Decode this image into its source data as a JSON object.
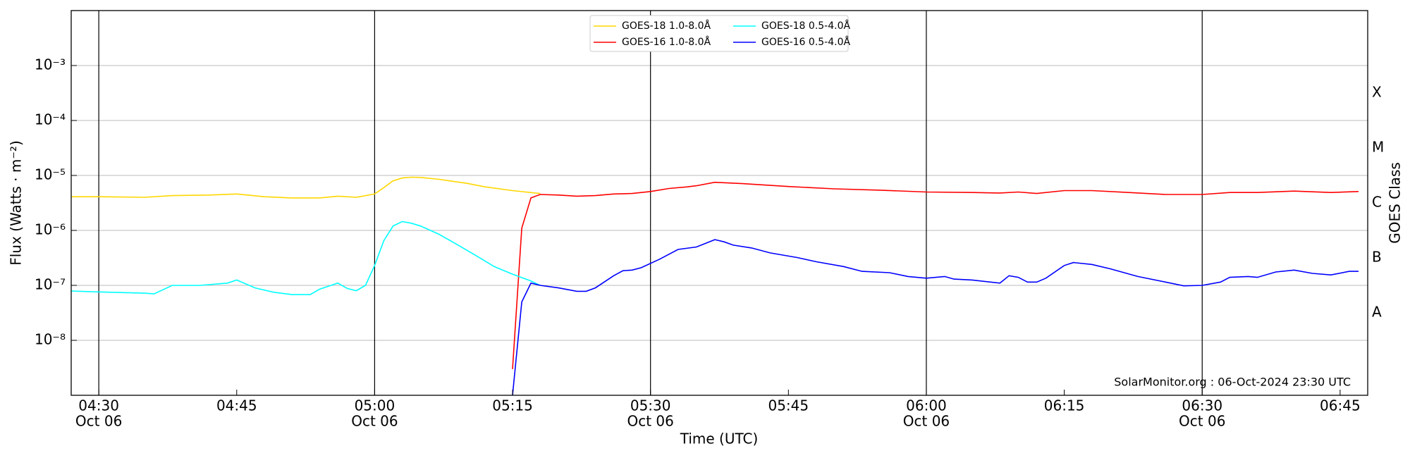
{
  "chart_data": {
    "type": "line",
    "xlabel": "Time (UTC)",
    "ylabel": "Flux (Watts · m⁻²)",
    "y2label": "GOES Class",
    "annotation": "SolarMonitor.org : 06-Oct-2024 23:30 UTC",
    "yscale": "log",
    "grid": true,
    "legend": "top",
    "xlim": [
      "04:27",
      "06:48"
    ],
    "ylim": [
      1e-09,
      0.01
    ],
    "xticks": [
      {
        "value": "04:30",
        "label": "04:30",
        "date": "Oct 06"
      },
      {
        "value": "04:45",
        "label": "04:45"
      },
      {
        "value": "05:00",
        "label": "05:00",
        "date": "Oct 06"
      },
      {
        "value": "05:15",
        "label": "05:15"
      },
      {
        "value": "05:30",
        "label": "05:30",
        "date": "Oct 06"
      },
      {
        "value": "05:45",
        "label": "05:45"
      },
      {
        "value": "06:00",
        "label": "06:00",
        "date": "Oct 06"
      },
      {
        "value": "06:15",
        "label": "06:15"
      },
      {
        "value": "06:30",
        "label": "06:30",
        "date": "Oct 06"
      },
      {
        "value": "06:45",
        "label": "06:45"
      }
    ],
    "yticks": [
      {
        "value": 1e-08,
        "label": "10⁻⁸"
      },
      {
        "value": 1e-07,
        "label": "10⁻⁷"
      },
      {
        "value": 1e-06,
        "label": "10⁻⁶"
      },
      {
        "value": 1e-05,
        "label": "10⁻⁵"
      },
      {
        "value": 0.0001,
        "label": "10⁻⁴"
      },
      {
        "value": 0.001,
        "label": "10⁻³"
      }
    ],
    "y2ticks": [
      {
        "value": 3.16e-08,
        "label": "A"
      },
      {
        "value": 3.16e-07,
        "label": "B"
      },
      {
        "value": 3.16e-06,
        "label": "C"
      },
      {
        "value": 3.16e-05,
        "label": "M"
      },
      {
        "value": 0.000316,
        "label": "X"
      }
    ],
    "series": [
      {
        "name": "GOES-18 1.0-8.0Å",
        "color": "#ffd700",
        "x": [
          "04:27",
          "04:30",
          "04:35",
          "04:38",
          "04:42",
          "04:45",
          "04:48",
          "04:51",
          "04:54",
          "04:56",
          "04:58",
          "05:00",
          "05:01",
          "05:02",
          "05:03",
          "05:04",
          "05:05",
          "05:07",
          "05:10",
          "05:12",
          "05:15",
          "05:18"
        ],
        "values": [
          4.1e-06,
          4.1e-06,
          4e-06,
          4.3e-06,
          4.4e-06,
          4.6e-06,
          4.1e-06,
          3.9e-06,
          3.9e-06,
          4.2e-06,
          4e-06,
          4.6e-06,
          6e-06,
          8e-06,
          9e-06,
          9.3e-06,
          9.2e-06,
          8.5e-06,
          7.2e-06,
          6.2e-06,
          5.3e-06,
          4.7e-06
        ]
      },
      {
        "name": "GOES-16 1.0-8.0Å",
        "color": "#ff0000",
        "x": [
          "05:15",
          "05:16",
          "05:17",
          "05:18",
          "05:20",
          "05:22",
          "05:24",
          "05:26",
          "05:28",
          "05:30",
          "05:32",
          "05:34",
          "05:35",
          "05:37",
          "05:40",
          "05:45",
          "05:50",
          "05:55",
          "06:00",
          "06:05",
          "06:08",
          "06:10",
          "06:12",
          "06:15",
          "06:18",
          "06:22",
          "06:26",
          "06:30",
          "06:33",
          "06:36",
          "06:40",
          "06:44",
          "06:47"
        ],
        "values": [
          3e-09,
          1.1e-06,
          3.9e-06,
          4.5e-06,
          4.4e-06,
          4.2e-06,
          4.3e-06,
          4.6e-06,
          4.7e-06,
          5.1e-06,
          5.8e-06,
          6.2e-06,
          6.5e-06,
          7.5e-06,
          7.1e-06,
          6.3e-06,
          5.7e-06,
          5.4e-06,
          5e-06,
          4.9e-06,
          4.8e-06,
          5e-06,
          4.7e-06,
          5.3e-06,
          5.3e-06,
          4.9e-06,
          4.5e-06,
          4.5e-06,
          4.9e-06,
          4.9e-06,
          5.2e-06,
          4.9e-06,
          5.1e-06
        ]
      },
      {
        "name": "GOES-18 0.5-4.0Å",
        "color": "#00ffff",
        "x": [
          "04:27",
          "04:30",
          "04:35",
          "04:36",
          "04:38",
          "04:41",
          "04:44",
          "04:45",
          "04:47",
          "04:49",
          "04:51",
          "04:53",
          "04:54",
          "04:56",
          "04:57",
          "04:58",
          "04:59",
          "05:00",
          "05:01",
          "05:02",
          "05:03",
          "05:04",
          "05:05",
          "05:07",
          "05:09",
          "05:11",
          "05:13",
          "05:15",
          "05:17",
          "05:18"
        ],
        "values": [
          7.9e-08,
          7.6e-08,
          7.2e-08,
          7e-08,
          1e-07,
          1e-07,
          1.1e-07,
          1.25e-07,
          9e-08,
          7.5e-08,
          6.8e-08,
          6.8e-08,
          8.5e-08,
          1.1e-07,
          8.8e-08,
          8e-08,
          1e-07,
          2.3e-07,
          6.5e-07,
          1.2e-06,
          1.45e-06,
          1.35e-06,
          1.2e-06,
          8.5e-07,
          5.5e-07,
          3.5e-07,
          2.2e-07,
          1.6e-07,
          1.2e-07,
          1e-07
        ]
      },
      {
        "name": "GOES-16 0.5-4.0Å",
        "color": "#0000ff",
        "x": [
          "05:15",
          "05:16",
          "05:17",
          "05:18",
          "05:20",
          "05:22",
          "05:23",
          "05:24",
          "05:26",
          "05:27",
          "05:28",
          "05:29",
          "05:31",
          "05:33",
          "05:35",
          "05:37",
          "05:38",
          "05:39",
          "05:41",
          "05:43",
          "05:46",
          "05:48",
          "05:51",
          "05:53",
          "05:56",
          "05:58",
          "06:00",
          "06:02",
          "06:03",
          "06:05",
          "06:08",
          "06:09",
          "06:10",
          "06:11",
          "06:12",
          "06:13",
          "06:15",
          "06:16",
          "06:18",
          "06:20",
          "06:23",
          "06:26",
          "06:28",
          "06:30",
          "06:32",
          "06:33",
          "06:35",
          "06:36",
          "06:38",
          "06:40",
          "06:42",
          "06:44",
          "06:46",
          "06:47"
        ],
        "values": [
          1e-09,
          5e-08,
          1.1e-07,
          1e-07,
          9e-08,
          7.8e-08,
          7.8e-08,
          9e-08,
          1.5e-07,
          1.85e-07,
          1.9e-07,
          2.1e-07,
          3e-07,
          4.5e-07,
          5e-07,
          6.8e-07,
          6.2e-07,
          5.4e-07,
          4.8e-07,
          3.9e-07,
          3.2e-07,
          2.7e-07,
          2.2e-07,
          1.8e-07,
          1.7e-07,
          1.45e-07,
          1.35e-07,
          1.45e-07,
          1.3e-07,
          1.25e-07,
          1.1e-07,
          1.5e-07,
          1.4e-07,
          1.15e-07,
          1.15e-07,
          1.35e-07,
          2.3e-07,
          2.6e-07,
          2.4e-07,
          2e-07,
          1.45e-07,
          1.15e-07,
          9.8e-08,
          1e-07,
          1.15e-07,
          1.4e-07,
          1.45e-07,
          1.4e-07,
          1.75e-07,
          1.9e-07,
          1.65e-07,
          1.55e-07,
          1.8e-07,
          1.8e-07
        ]
      }
    ]
  }
}
